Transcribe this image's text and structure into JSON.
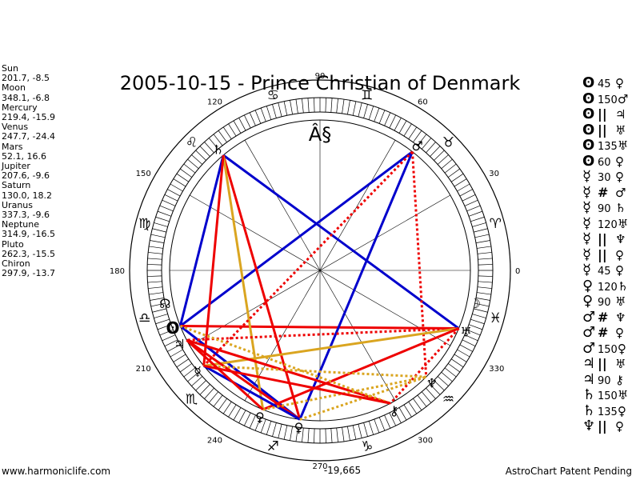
{
  "title": "2005-10-15 - Prince Christian of Denmark",
  "planets": [
    {
      "name": "Sun",
      "value": "201.7, -8.5"
    },
    {
      "name": "Moon",
      "value": "348.1, -6.8"
    },
    {
      "name": "Mercury",
      "value": "219.4, -15.9"
    },
    {
      "name": "Venus",
      "value": "247.7, -24.4"
    },
    {
      "name": "Mars",
      "value": "52.1, 16.6"
    },
    {
      "name": "Jupiter",
      "value": "207.6, -9.6"
    },
    {
      "name": "Saturn",
      "value": "130.0, 18.2"
    },
    {
      "name": "Uranus",
      "value": "337.3, -9.6"
    },
    {
      "name": "Neptune",
      "value": "314.9, -16.5"
    },
    {
      "name": "Pluto",
      "value": "262.3, -15.5"
    },
    {
      "name": "Chiron",
      "value": "297.9, -13.7"
    }
  ],
  "aspects": [
    {
      "p1": "ʘ",
      "aspect": "45",
      "p2": "♀"
    },
    {
      "p1": "ʘ",
      "aspect": "150",
      "p2": "♂"
    },
    {
      "p1": "ʘ",
      "aspect": "||",
      "p2": "♃"
    },
    {
      "p1": "ʘ",
      "aspect": "||",
      "p2": "♅"
    },
    {
      "p1": "ʘ",
      "aspect": "135",
      "p2": "♅"
    },
    {
      "p1": "ʘ",
      "aspect": "60",
      "p2": "♀"
    },
    {
      "p1": "☿",
      "aspect": "30",
      "p2": "♀"
    },
    {
      "p1": "☿",
      "aspect": "#",
      "p2": "♂"
    },
    {
      "p1": "☿",
      "aspect": "90",
      "p2": "♄"
    },
    {
      "p1": "☿",
      "aspect": "120",
      "p2": "♅"
    },
    {
      "p1": "☿",
      "aspect": "||",
      "p2": "♆"
    },
    {
      "p1": "☿",
      "aspect": "||",
      "p2": "♀"
    },
    {
      "p1": "☿",
      "aspect": "45",
      "p2": "♀"
    },
    {
      "p1": "♀",
      "aspect": "120",
      "p2": "♄"
    },
    {
      "p1": "♀",
      "aspect": "90",
      "p2": "♅"
    },
    {
      "p1": "♂",
      "aspect": "#",
      "p2": "♆"
    },
    {
      "p1": "♂",
      "aspect": "#",
      "p2": "♀"
    },
    {
      "p1": "♂",
      "aspect": "150",
      "p2": "♀"
    },
    {
      "p1": "♃",
      "aspect": "||",
      "p2": "♅"
    },
    {
      "p1": "♃",
      "aspect": "90",
      "p2": "⚷"
    },
    {
      "p1": "♄",
      "aspect": "150",
      "p2": "♅"
    },
    {
      "p1": "♄",
      "aspect": "135",
      "p2": "♀"
    },
    {
      "p1": "♆",
      "aspect": "||",
      "p2": "♀"
    }
  ],
  "wheel": {
    "degree_labels": [
      "0",
      "30",
      "60",
      "90",
      "120",
      "150",
      "180",
      "210",
      "240",
      "270",
      "300",
      "330"
    ],
    "bottom_label": "-19,665",
    "center_glyph": "Â§",
    "signs": [
      {
        "glyph": "♈",
        "lon": 15
      },
      {
        "glyph": "♉",
        "lon": 45
      },
      {
        "glyph": "♊",
        "lon": 75
      },
      {
        "glyph": "♋",
        "lon": 105
      },
      {
        "glyph": "♌",
        "lon": 135
      },
      {
        "glyph": "♍",
        "lon": 165
      },
      {
        "glyph": "♎",
        "lon": 195
      },
      {
        "glyph": "♏",
        "lon": 225
      },
      {
        "glyph": "♐",
        "lon": 255
      },
      {
        "glyph": "♑",
        "lon": 285
      },
      {
        "glyph": "♒",
        "lon": 315
      },
      {
        "glyph": "♓",
        "lon": 345
      }
    ],
    "bodies": [
      {
        "key": "sun",
        "glyph": "ʘ",
        "lon": 201.7
      },
      {
        "key": "moon",
        "glyph": "☽",
        "lon": 348.1
      },
      {
        "key": "mercury",
        "glyph": "☿",
        "lon": 219.4
      },
      {
        "key": "venus",
        "glyph": "♀",
        "lon": 247.7
      },
      {
        "key": "mars",
        "glyph": "♂",
        "lon": 52.1
      },
      {
        "key": "jupiter",
        "glyph": "♃",
        "lon": 207.6
      },
      {
        "key": "saturn",
        "glyph": "♄",
        "lon": 130.0
      },
      {
        "key": "uranus",
        "glyph": "♅",
        "lon": 337.3
      },
      {
        "key": "neptune",
        "glyph": "♆",
        "lon": 314.9
      },
      {
        "key": "pluto",
        "glyph": "♀",
        "lon": 262.3
      },
      {
        "key": "chiron",
        "glyph": "⚷",
        "lon": 297.9
      },
      {
        "key": "node",
        "glyph": "☊",
        "lon": 192
      }
    ],
    "aspect_lines": [
      {
        "from": "sun",
        "to": "saturn",
        "color": "#0000cc",
        "style": "solid"
      },
      {
        "from": "sun",
        "to": "mars",
        "color": "#0000cc",
        "style": "solid"
      },
      {
        "from": "sun",
        "to": "uranus",
        "color": "#ee0000",
        "style": "solid"
      },
      {
        "from": "sun",
        "to": "pluto",
        "color": "#0000cc",
        "style": "solid"
      },
      {
        "from": "saturn",
        "to": "uranus",
        "color": "#0000cc",
        "style": "solid"
      },
      {
        "from": "saturn",
        "to": "pluto",
        "color": "#ee0000",
        "style": "solid"
      },
      {
        "from": "saturn",
        "to": "venus",
        "color": "#daa520",
        "style": "solid"
      },
      {
        "from": "saturn",
        "to": "mercury",
        "color": "#ee0000",
        "style": "solid"
      },
      {
        "from": "mars",
        "to": "pluto",
        "color": "#0000cc",
        "style": "solid"
      },
      {
        "from": "mars",
        "to": "mercury",
        "color": "#ee0000",
        "style": "dotted"
      },
      {
        "from": "mars",
        "to": "neptune",
        "color": "#ee0000",
        "style": "dotted"
      },
      {
        "from": "uranus",
        "to": "jupiter",
        "color": "#ee0000",
        "style": "dotted"
      },
      {
        "from": "uranus",
        "to": "mercury",
        "color": "#daa520",
        "style": "solid"
      },
      {
        "from": "uranus",
        "to": "venus",
        "color": "#ee0000",
        "style": "solid"
      },
      {
        "from": "uranus",
        "to": "chiron",
        "color": "#ee0000",
        "style": "dotted"
      },
      {
        "from": "jupiter",
        "to": "chiron",
        "color": "#ee0000",
        "style": "solid"
      },
      {
        "from": "jupiter",
        "to": "pluto",
        "color": "#ee0000",
        "style": "solid"
      },
      {
        "from": "mercury",
        "to": "pluto",
        "color": "#0000cc",
        "style": "solid"
      },
      {
        "from": "mercury",
        "to": "neptune",
        "color": "#daa520",
        "style": "dotted"
      },
      {
        "from": "venus",
        "to": "neptune",
        "color": "#daa520",
        "style": "dotted"
      },
      {
        "from": "pluto",
        "to": "neptune",
        "color": "#daa520",
        "style": "dotted"
      },
      {
        "from": "sun",
        "to": "chiron",
        "color": "#daa520",
        "style": "dotted"
      },
      {
        "from": "mercury",
        "to": "chiron",
        "color": "#ee0000",
        "style": "solid"
      },
      {
        "from": "jupiter",
        "to": "venus",
        "color": "#ee0000",
        "style": "solid"
      }
    ]
  },
  "footer": {
    "left": "www.harmoniclife.com",
    "right": "AstroChart Patent Pending"
  }
}
